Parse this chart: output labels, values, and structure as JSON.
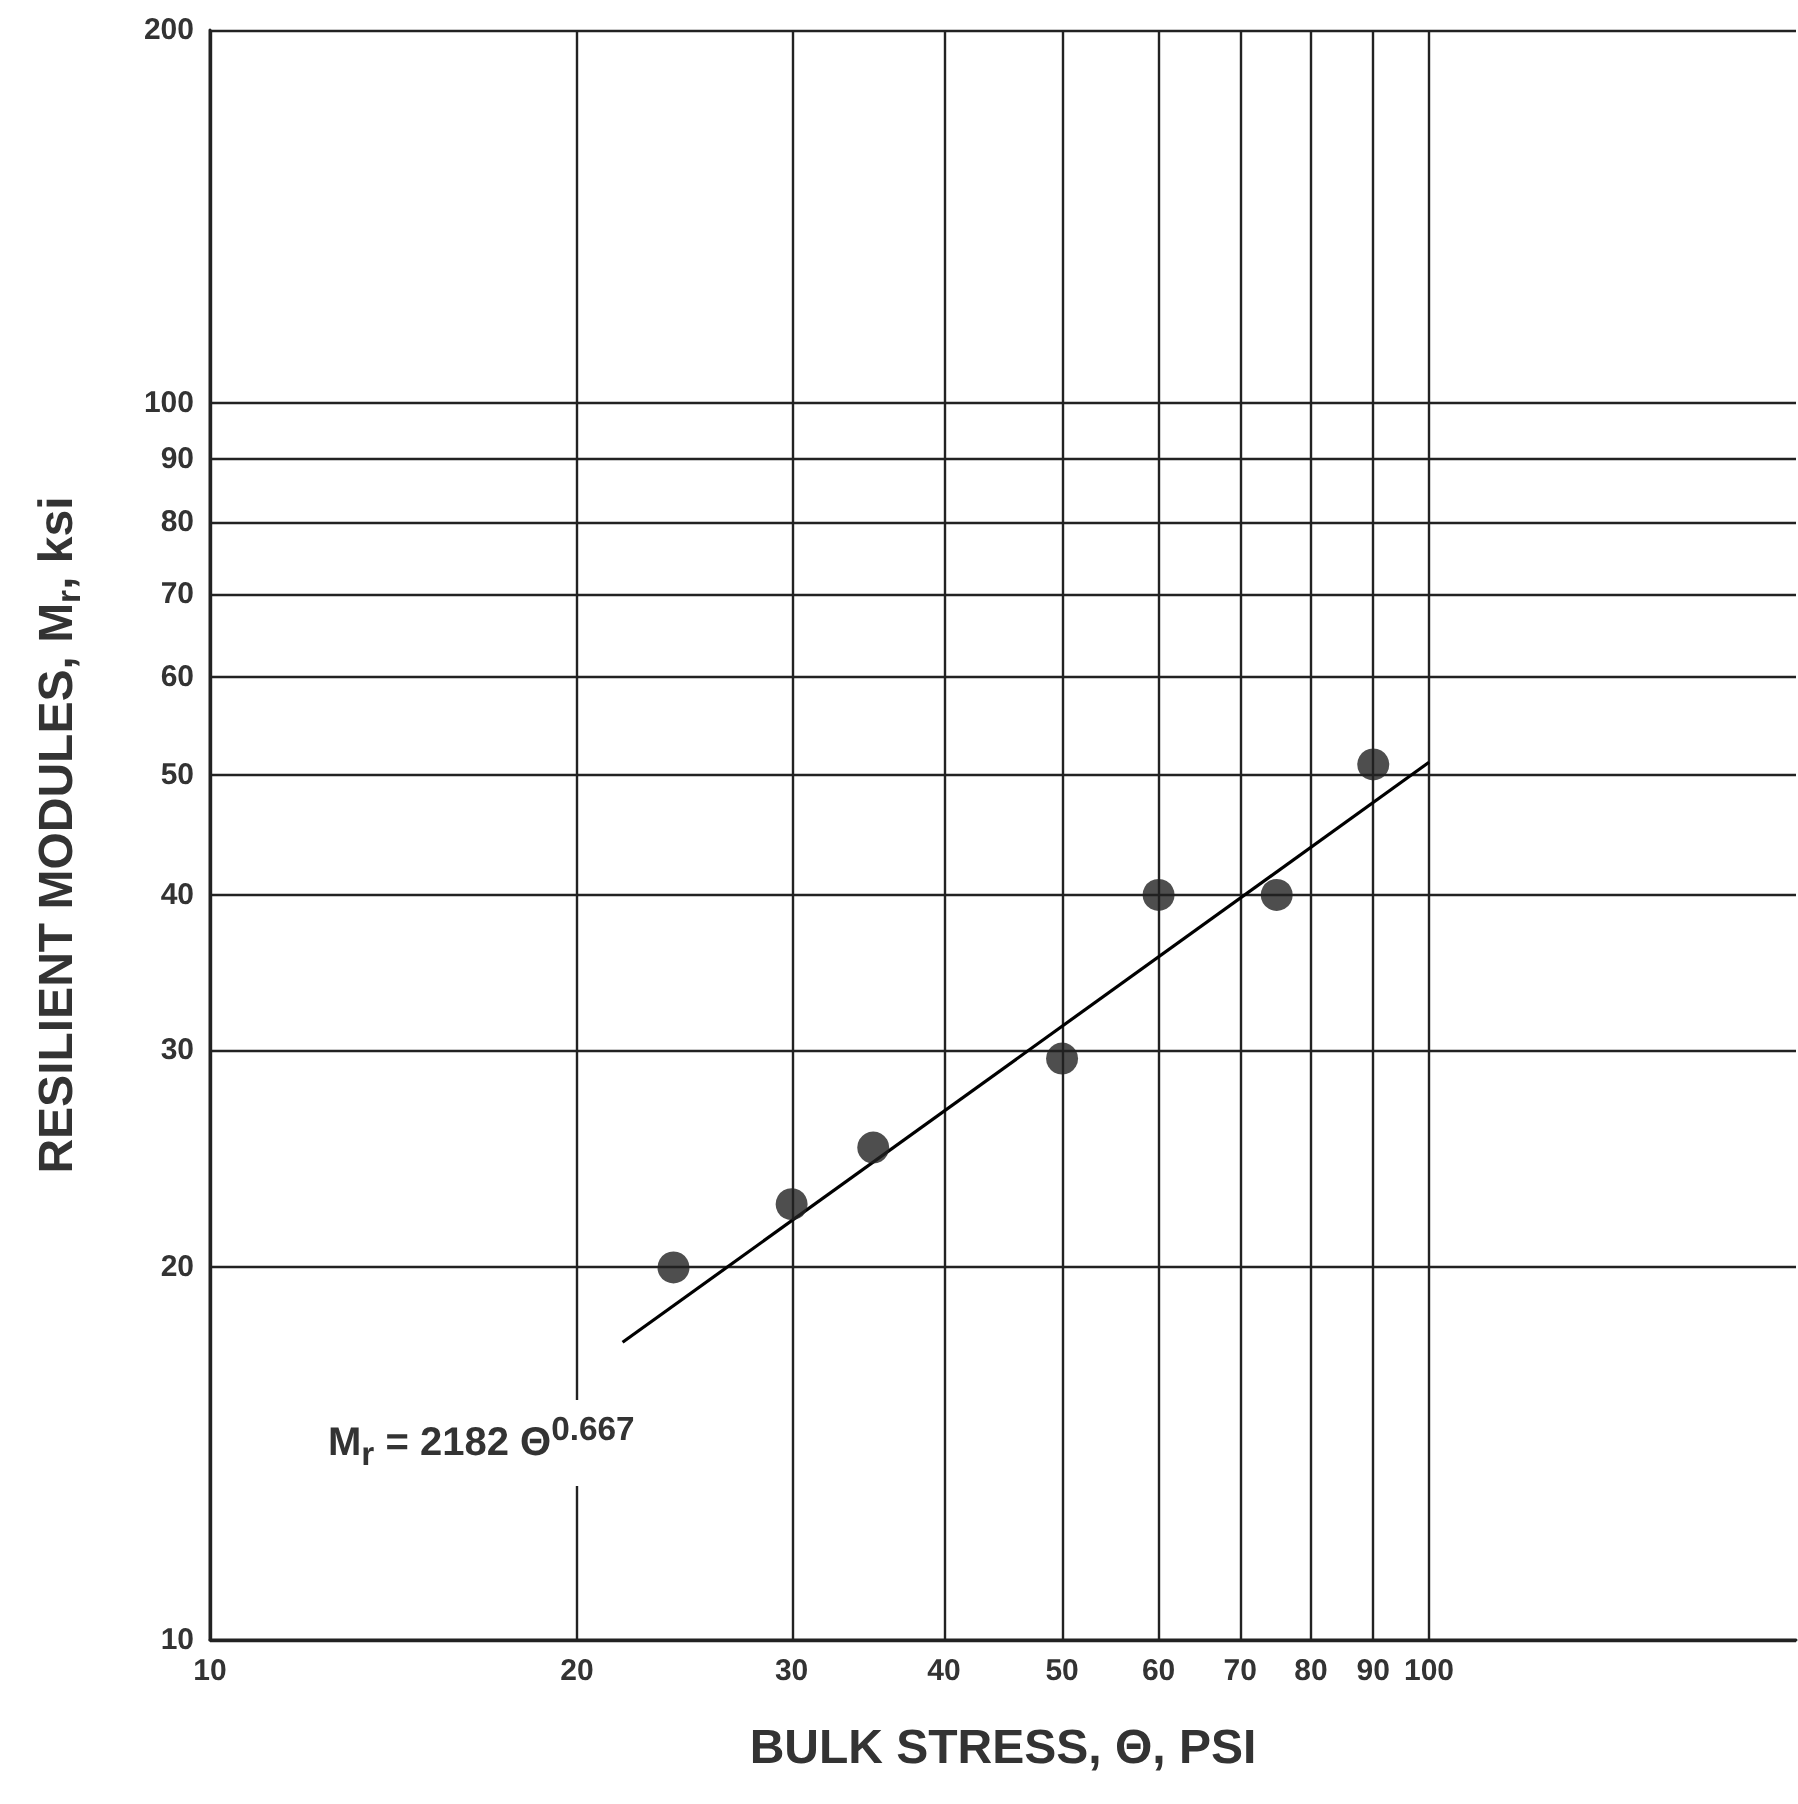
{
  "chart_data": {
    "type": "scatter",
    "xlabel": "BULK STRESS, Θ, PSI",
    "ylabel": "RESILIENT MODULES, M$_{r}$, ksi",
    "log": "xy",
    "xlim": [
      10,
      200
    ],
    "ylim": [
      10,
      200
    ],
    "xticks": [
      10,
      20,
      30,
      40,
      50,
      60,
      70,
      80,
      90,
      100
    ],
    "yticks": [
      10,
      20,
      30,
      40,
      50,
      60,
      70,
      80,
      90,
      100,
      200
    ],
    "grid": true,
    "marker": "circle",
    "annotations": [
      "M$_{r}$ = 2182 Θ$^{0.667}$"
    ],
    "series": [
      {
        "color": "#222222",
        "x": [
          24,
          30,
          35,
          50,
          60,
          75,
          90
        ],
        "values": [
          20,
          22.5,
          25,
          29.5,
          40,
          40,
          51
        ]
      },
      {
        "type": "line",
        "color": "#000000",
        "marker": "none",
        "x": [
          21.8,
          100
        ],
        "values": [
          17.4,
          51.2
        ]
      }
    ]
  }
}
